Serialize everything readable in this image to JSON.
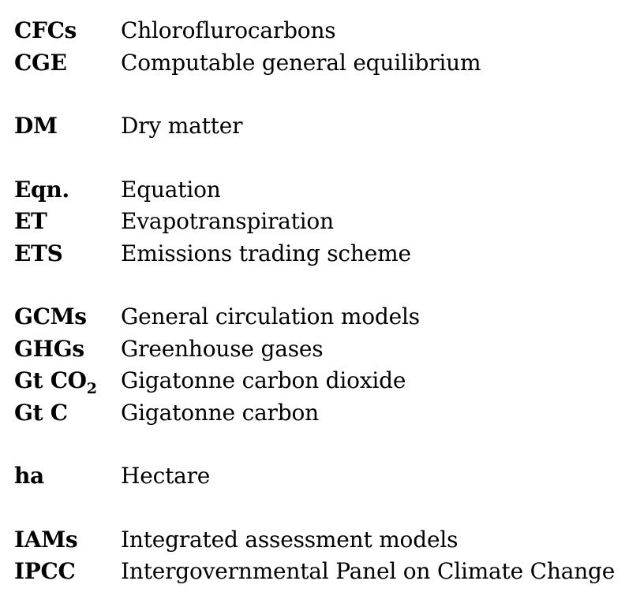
{
  "groups": [
    {
      "entries": [
        {
          "abbr": "CFCs",
          "definition": "Chloroflurocarbons"
        },
        {
          "abbr": "CGE",
          "definition": "Computable general equilibrium"
        }
      ]
    },
    {
      "entries": [
        {
          "abbr": "DM",
          "definition": "Dry matter"
        }
      ]
    },
    {
      "entries": [
        {
          "abbr": "Eqn.",
          "definition": "Equation"
        },
        {
          "abbr": "ET",
          "definition": "Evapotranspiration"
        },
        {
          "abbr": "ETS",
          "definition": "Emissions trading scheme"
        }
      ]
    },
    {
      "entries": [
        {
          "abbr": "GCMs",
          "definition": "General circulation models"
        },
        {
          "abbr": "GHGs",
          "definition": "Greenhouse gases"
        },
        {
          "abbr": "Gt CO",
          "abbr_sub": "2",
          "definition": "Gigatonne carbon dioxide"
        },
        {
          "abbr": "Gt C",
          "definition": "Gigatonne carbon"
        }
      ]
    },
    {
      "entries": [
        {
          "abbr": "ha",
          "definition": "Hectare"
        }
      ]
    },
    {
      "entries": [
        {
          "abbr": "IAMs",
          "definition": "Integrated assessment models"
        },
        {
          "abbr": "IPCC",
          "definition": "Intergovernmental Panel on Climate Change"
        }
      ]
    }
  ]
}
